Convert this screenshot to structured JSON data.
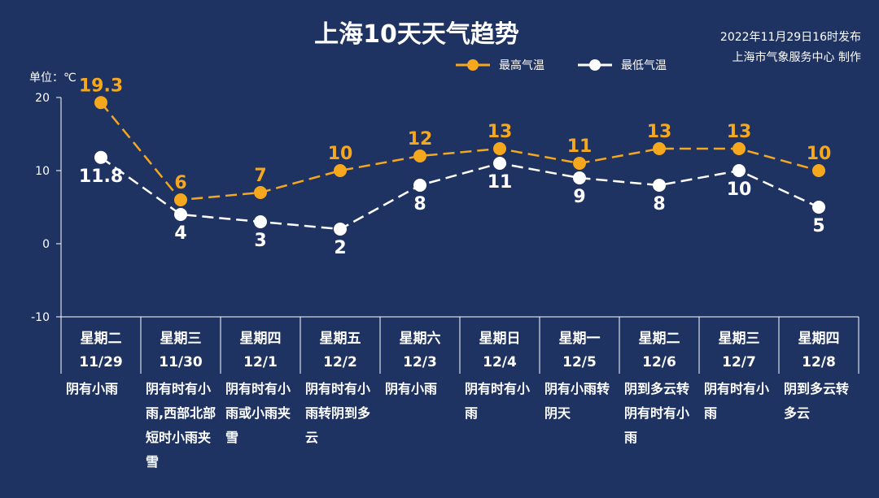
{
  "header": {
    "title": "上海10天天气趋势",
    "publish_time": "2022年11月29日16时发布",
    "producer": "上海市气象服务中心 制作"
  },
  "chart_data": {
    "type": "line",
    "unit_label": "单位：℃",
    "ylim": [
      -10,
      20
    ],
    "yticks": [
      -10,
      0,
      10,
      20
    ],
    "legend_position": "top-right",
    "categories": [
      {
        "weekday": "星期二",
        "date": "11/29",
        "desc": [
          "阴有小雨"
        ]
      },
      {
        "weekday": "星期三",
        "date": "11/30",
        "desc": [
          "阴有时有小",
          "雨,西部北部",
          "短时小雨夹",
          "雪"
        ]
      },
      {
        "weekday": "星期四",
        "date": "12/1",
        "desc": [
          "阴有时有小",
          "雨或小雨夹",
          "雪"
        ]
      },
      {
        "weekday": "星期五",
        "date": "12/2",
        "desc": [
          "阴有时有小",
          "雨转阴到多",
          "云"
        ]
      },
      {
        "weekday": "星期六",
        "date": "12/3",
        "desc": [
          "阴有小雨"
        ]
      },
      {
        "weekday": "星期日",
        "date": "12/4",
        "desc": [
          "阴有时有小",
          "雨"
        ]
      },
      {
        "weekday": "星期一",
        "date": "12/5",
        "desc": [
          "阴有小雨转",
          "阴天"
        ]
      },
      {
        "weekday": "星期二",
        "date": "12/6",
        "desc": [
          "阴到多云转",
          "阴有时有小",
          "雨"
        ]
      },
      {
        "weekday": "星期三",
        "date": "12/7",
        "desc": [
          "阴有时有小",
          "雨"
        ]
      },
      {
        "weekday": "星期四",
        "date": "12/8",
        "desc": [
          "阴到多云转",
          "多云"
        ]
      }
    ],
    "series": [
      {
        "name": "最高气温",
        "color": "#f5a81e",
        "values": [
          19.3,
          6,
          7,
          10,
          12,
          13,
          11,
          13,
          13,
          10
        ],
        "labels": [
          "19.3",
          "6",
          "7",
          "10",
          "12",
          "13",
          "11",
          "13",
          "13",
          "10"
        ]
      },
      {
        "name": "最低气温",
        "color": "#ffffff",
        "values": [
          11.8,
          4,
          3,
          2,
          8,
          11,
          9,
          8,
          10,
          5
        ],
        "labels": [
          "11.8",
          "4",
          "3",
          "2",
          "8",
          "11",
          "9",
          "8",
          "10",
          "5"
        ]
      }
    ]
  }
}
